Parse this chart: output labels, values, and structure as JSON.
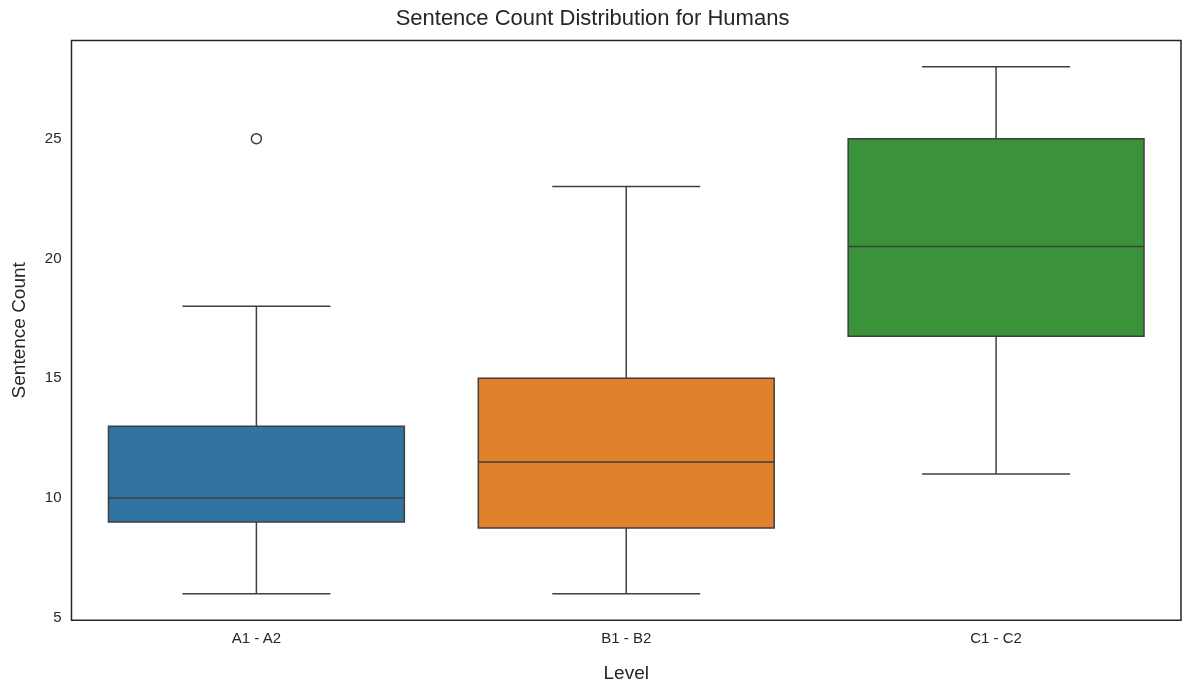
{
  "chart_data": {
    "type": "box",
    "title": "Sentence Count Distribution for Humans",
    "xlabel": "Level",
    "ylabel": "Sentence Count",
    "categories": [
      "A1 - A2",
      "B1 - B2",
      "C1 - C2"
    ],
    "colors": [
      "#3274a1",
      "#e1812c",
      "#3a923a"
    ],
    "boxes": [
      {
        "low": 6,
        "q1": 9,
        "median": 10,
        "q3": 13,
        "high": 18,
        "outliers": [
          25
        ]
      },
      {
        "low": 6,
        "q1": 8.75,
        "median": 11.5,
        "q3": 15,
        "high": 23
      },
      {
        "low": 11,
        "q1": 16.75,
        "median": 20.5,
        "q3": 25,
        "high": 28
      }
    ],
    "ylim": [
      4.9,
      29.1
    ],
    "yticks": [
      5,
      10,
      15,
      20,
      25
    ]
  }
}
